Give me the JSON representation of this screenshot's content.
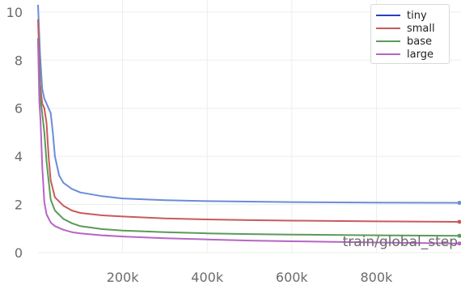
{
  "chart_data": {
    "type": "line",
    "xlabel": "train/global_step",
    "ylabel": "",
    "xlim": [
      0,
      1000000
    ],
    "ylim": [
      0,
      10.5
    ],
    "x_ticks": [
      200000,
      400000,
      600000,
      800000
    ],
    "x_tick_labels": [
      "200k",
      "400k",
      "600k",
      "800k"
    ],
    "y_ticks": [
      0,
      2,
      4,
      6,
      8,
      10
    ],
    "y_tick_labels": [
      "0",
      "2",
      "4",
      "6",
      "8",
      "10"
    ],
    "grid": true,
    "legend_position": "top-right",
    "series": [
      {
        "name": "tiny",
        "color": "#6b8cd8",
        "legend_color": "#2b3fbf",
        "x": [
          0,
          5000,
          10000,
          15000,
          20000,
          30000,
          35000,
          40000,
          50000,
          60000,
          80000,
          100000,
          150000,
          200000,
          300000,
          400000,
          500000,
          600000,
          800000,
          1000000
        ],
        "y": [
          10.3,
          8.2,
          6.8,
          6.4,
          6.2,
          5.8,
          5.0,
          4.0,
          3.2,
          2.9,
          2.65,
          2.5,
          2.35,
          2.25,
          2.18,
          2.14,
          2.12,
          2.1,
          2.08,
          2.07
        ]
      },
      {
        "name": "small",
        "color": "#c85b5b",
        "legend_color": "#c85b5b",
        "x": [
          0,
          5000,
          10000,
          15000,
          20000,
          25000,
          30000,
          40000,
          60000,
          80000,
          100000,
          150000,
          200000,
          300000,
          400000,
          500000,
          600000,
          800000,
          1000000
        ],
        "y": [
          9.7,
          7.0,
          6.2,
          6.0,
          5.4,
          4.0,
          3.0,
          2.3,
          1.95,
          1.75,
          1.65,
          1.55,
          1.5,
          1.42,
          1.38,
          1.35,
          1.33,
          1.3,
          1.28
        ]
      },
      {
        "name": "base",
        "color": "#5a9a5a",
        "legend_color": "#5a9a5a",
        "x": [
          0,
          5000,
          10000,
          15000,
          20000,
          30000,
          40000,
          60000,
          80000,
          100000,
          150000,
          200000,
          300000,
          400000,
          500000,
          600000,
          800000,
          1000000
        ],
        "y": [
          8.9,
          6.5,
          5.8,
          5.0,
          3.8,
          2.2,
          1.75,
          1.4,
          1.22,
          1.1,
          0.98,
          0.92,
          0.85,
          0.8,
          0.77,
          0.75,
          0.72,
          0.7
        ]
      },
      {
        "name": "large",
        "color": "#b765c4",
        "legend_color": "#b765c4",
        "x": [
          0,
          3000,
          6000,
          10000,
          15000,
          20000,
          30000,
          40000,
          60000,
          80000,
          100000,
          150000,
          200000,
          300000,
          400000,
          500000,
          600000,
          800000,
          1000000
        ],
        "y": [
          8.8,
          6.3,
          5.5,
          3.6,
          2.1,
          1.6,
          1.25,
          1.1,
          0.95,
          0.85,
          0.8,
          0.72,
          0.67,
          0.6,
          0.55,
          0.5,
          0.47,
          0.42,
          0.38
        ]
      }
    ]
  }
}
